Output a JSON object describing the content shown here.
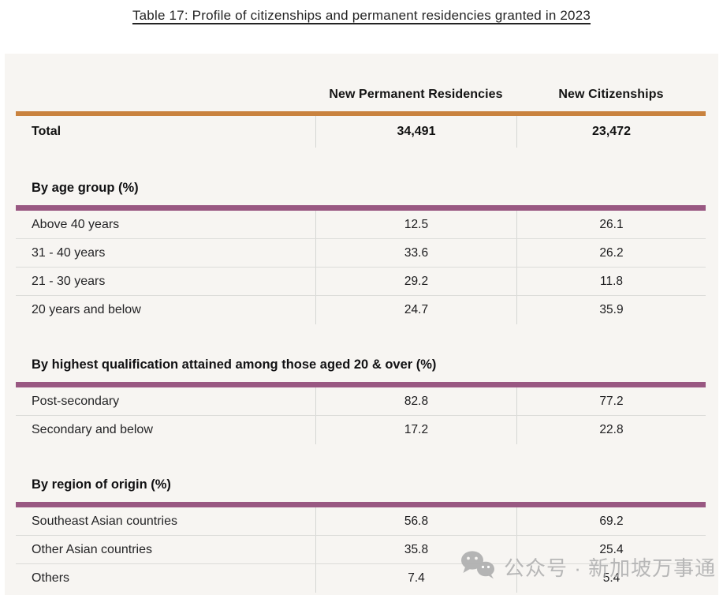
{
  "page": {
    "title": "Table 17: Profile of citizenships and permanent residencies granted in 2023"
  },
  "table": {
    "columns": [
      "New Permanent Residencies",
      "New Citizenships"
    ],
    "total": {
      "label": "Total",
      "values": [
        "34,491",
        "23,472"
      ]
    },
    "sections": [
      {
        "heading": "By age group (%)",
        "rows": [
          {
            "label": "Above 40 years",
            "values": [
              "12.5",
              "26.1"
            ]
          },
          {
            "label": "31 - 40 years",
            "values": [
              "33.6",
              "26.2"
            ]
          },
          {
            "label": "21 - 30 years",
            "values": [
              "29.2",
              "11.8"
            ]
          },
          {
            "label": "20 years and below",
            "values": [
              "24.7",
              "35.9"
            ]
          }
        ]
      },
      {
        "heading": "By highest qualification attained among those aged 20 & over (%)",
        "rows": [
          {
            "label": "Post-secondary",
            "values": [
              "82.8",
              "77.2"
            ]
          },
          {
            "label": "Secondary and below",
            "values": [
              "17.2",
              "22.8"
            ]
          }
        ]
      },
      {
        "heading": "By region of origin (%)",
        "rows": [
          {
            "label": "Southeast Asian countries",
            "values": [
              "56.8",
              "69.2"
            ]
          },
          {
            "label": "Other Asian countries",
            "values": [
              "35.8",
              "25.4"
            ]
          },
          {
            "label": "Others",
            "values": [
              "7.4",
              "5.4"
            ]
          }
        ]
      }
    ]
  },
  "watermark": {
    "icon": "wechat-icon",
    "text": "公众号 · 新加坡万事通"
  },
  "colors": {
    "accent_orange": "#c9823e",
    "accent_purple": "#995882",
    "card_background": "#f7f5f2",
    "divider": "#dcdcd9",
    "text": "#1d1d1f",
    "watermark_gray": "#b2b2b2"
  }
}
